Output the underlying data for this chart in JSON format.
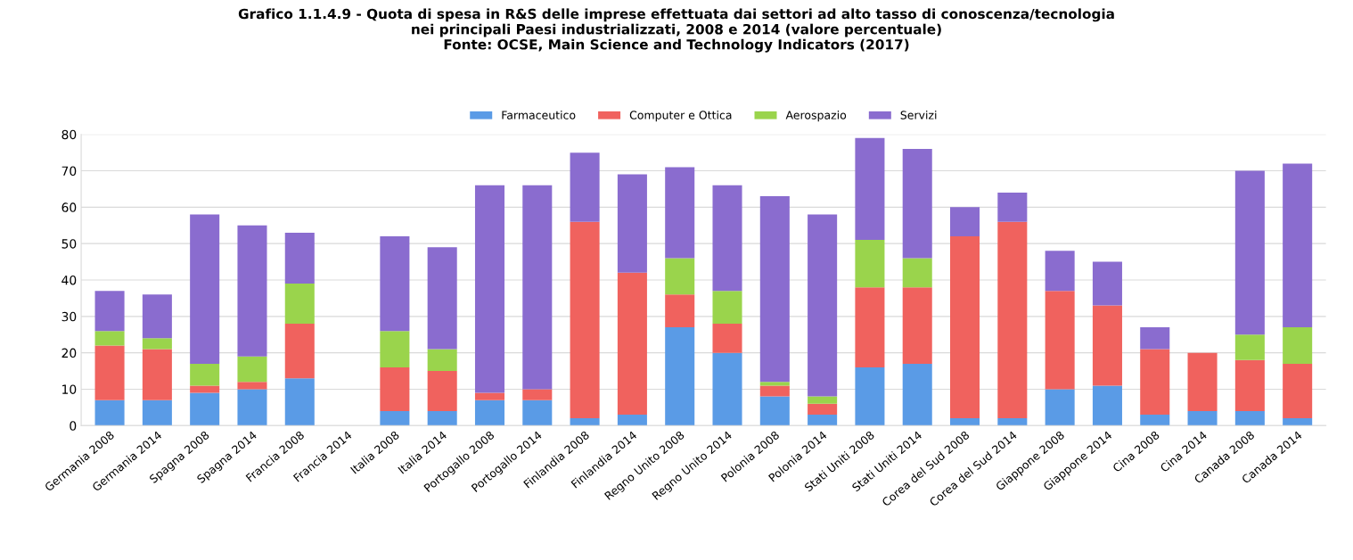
{
  "chart_data": {
    "type": "bar",
    "stacked": true,
    "title": "Grafico 1.1.4.9 - Quota di spesa in R&S delle imprese effettuata dai settori ad alto tasso di conoscenza/tecnologia\nnei principali Paesi industrializzati, 2008 e 2014 (valore percentuale)\nFonte: OCSE, Main Science and Technology Indicators (2017)",
    "categories": [
      "Germania 2008",
      "Germania 2014",
      "Spagna 2008",
      "Spagna 2014",
      "Francia 2008",
      "Francia 2014",
      "Italia 2008",
      "Italia 2014",
      "Portogallo 2008",
      "Portogallo 2014",
      "Finlandia 2008",
      "Finlandia 2014",
      "Regno Unito 2008",
      "Regno Unito 2014",
      "Polonia 2008",
      "Polonia 2014",
      "Stati Uniti 2008",
      "Stati Uniti 2014",
      "Corea del Sud 2008",
      "Corea del Sud 2014",
      "Giappone 2008",
      "Giappone 2014",
      "Cina 2008",
      "Cina 2014",
      "Canada 2008",
      "Canada 2014"
    ],
    "series": [
      {
        "name": "Farmaceutico",
        "color": "#5a9be6",
        "values": [
          7,
          7,
          9,
          10,
          13,
          null,
          4,
          4,
          7,
          7,
          2,
          3,
          27,
          20,
          8,
          3,
          16,
          17,
          2,
          2,
          10,
          11,
          3,
          4,
          4,
          2
        ]
      },
      {
        "name": "Computer e Ottica",
        "color": "#f0625e",
        "values": [
          15,
          14,
          2,
          2,
          15,
          null,
          12,
          11,
          2,
          3,
          54,
          39,
          9,
          8,
          3,
          3,
          22,
          21,
          50,
          54,
          27,
          22,
          18,
          16,
          14,
          15
        ]
      },
      {
        "name": "Aerospazio",
        "color": "#9ad44c",
        "values": [
          4,
          3,
          6,
          7,
          11,
          null,
          10,
          6,
          0,
          0,
          0,
          0,
          10,
          9,
          1,
          2,
          13,
          8,
          0,
          0,
          0,
          0,
          0,
          0,
          7,
          10
        ]
      },
      {
        "name": "Servizi",
        "color": "#8a6ccf",
        "values": [
          11,
          12,
          41,
          36,
          14,
          null,
          26,
          28,
          57,
          56,
          19,
          27,
          25,
          29,
          51,
          50,
          28,
          30,
          8,
          8,
          11,
          12,
          6,
          0,
          45,
          45
        ]
      }
    ],
    "ylim": [
      0,
      80
    ],
    "yticks": [
      0,
      10,
      20,
      30,
      40,
      50,
      60,
      70,
      80
    ],
    "grid": "y",
    "legend": "top"
  }
}
